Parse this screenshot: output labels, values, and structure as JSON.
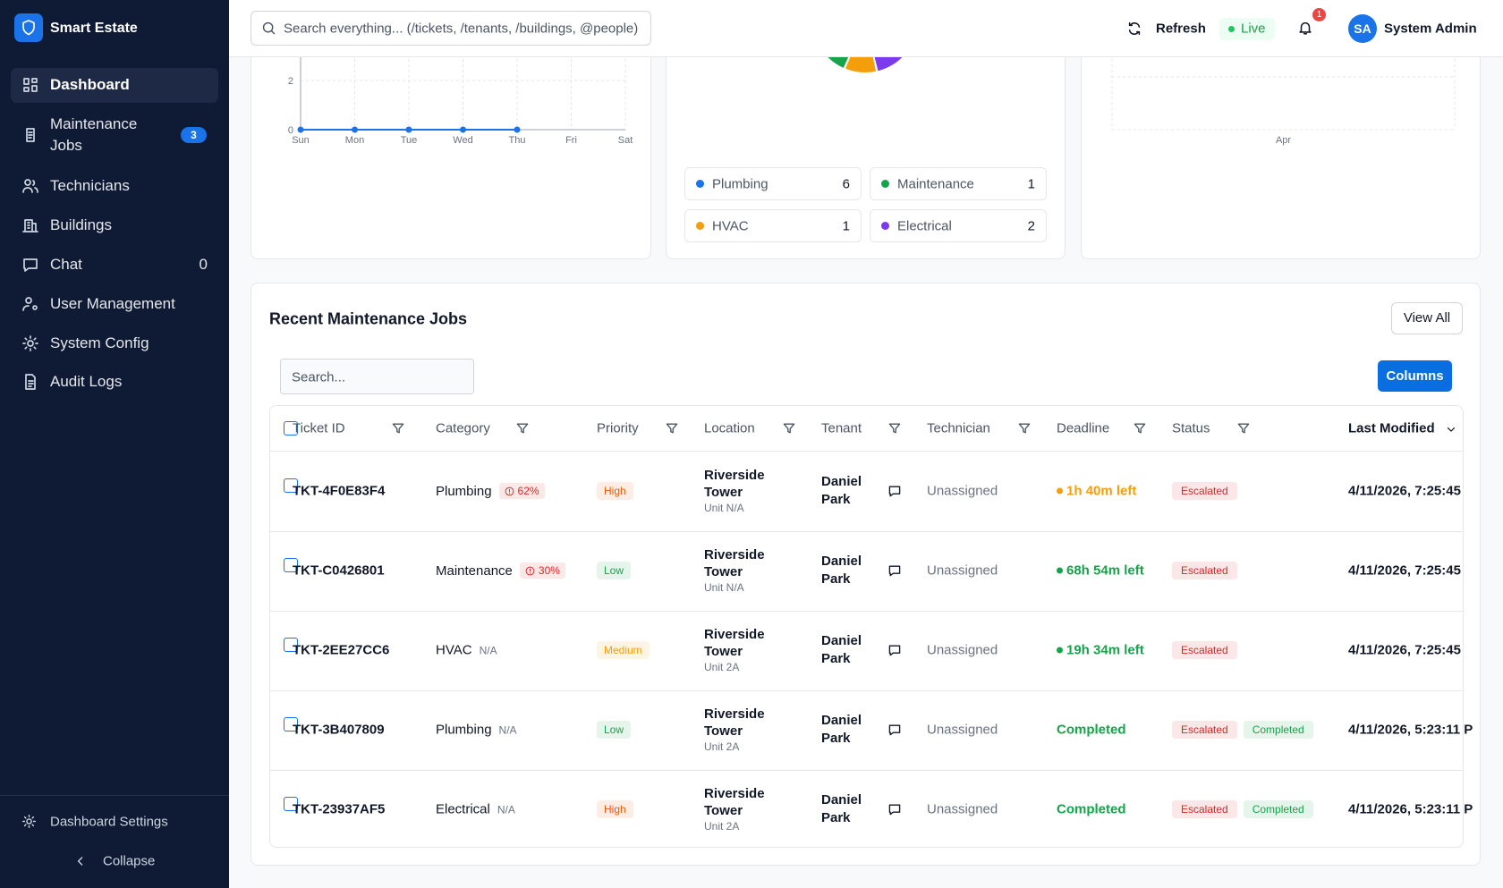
{
  "sidebar": {
    "brand": "Smart Estate",
    "nav": [
      {
        "label": "Dashboard"
      },
      {
        "label": "Maintenance Jobs",
        "badge": "3"
      },
      {
        "label": "Technicians"
      },
      {
        "label": "Buildings"
      },
      {
        "label": "Chat",
        "count": "0"
      },
      {
        "label": "User Management"
      },
      {
        "label": "System Config"
      },
      {
        "label": "Audit Logs"
      }
    ],
    "settings": "Dashboard Settings",
    "collapse": "Collapse"
  },
  "header": {
    "search_placeholder": "Search everything... (/tickets, /tenants, /buildings, @people)",
    "refresh": "Refresh",
    "live": "Live",
    "notifications": "1",
    "avatar": "SA",
    "user": "System Admin"
  },
  "chart_data": [
    {
      "type": "line",
      "categories": [
        "Sun",
        "Mon",
        "Tue",
        "Wed",
        "Thu",
        "Fri",
        "Sat"
      ],
      "values": [
        0,
        0,
        0,
        0,
        0,
        null,
        null
      ],
      "color": "#1a73e8",
      "ylim": [
        0,
        4
      ],
      "yticks": [
        0,
        2
      ],
      "grid": true
    },
    {
      "type": "pie",
      "categories": [
        "Plumbing",
        "Maintenance",
        "HVAC",
        "Electrical"
      ],
      "values": [
        6,
        1,
        1,
        2
      ],
      "colors": [
        "#1a73e8",
        "#16a34a",
        "#f59e0b",
        "#7c3aed"
      ]
    },
    {
      "type": "line",
      "categories": [
        "Apr"
      ],
      "grid": true
    }
  ],
  "jobs": {
    "title": "Recent Maintenance Jobs",
    "view_all": "View All",
    "search_placeholder": "Search...",
    "columns_button": "Columns",
    "columns": [
      "Ticket ID",
      "Category",
      "Priority",
      "Location",
      "Tenant",
      "Technician",
      "Deadline",
      "Status",
      "Last Modified"
    ],
    "rows": [
      {
        "id": "TKT-4F0E83F4",
        "category": "Plumbing",
        "risk": {
          "label": "62%",
          "color": "#dc2626",
          "background": "#fde8e8"
        },
        "priority": {
          "label": "High",
          "color": "#ea580c"
        },
        "location": "Riverside Tower",
        "unit": "Unit N/A",
        "tenant": "Daniel Park",
        "technician": "Unassigned",
        "deadline": {
          "label": "1h 40m left",
          "color": "#f59e0b",
          "dot": true
        },
        "status": [
          {
            "label": "Escalated",
            "color": "#dc2626"
          }
        ],
        "modified": "4/11/2026, 7:25:45"
      },
      {
        "id": "TKT-C0426801",
        "category": "Maintenance",
        "risk": {
          "label": "30%",
          "color": "#dc2626",
          "background": "#fde8e8"
        },
        "priority": {
          "label": "Low",
          "color": "#16a34a"
        },
        "location": "Riverside Tower",
        "unit": "Unit N/A",
        "tenant": "Daniel Park",
        "technician": "Unassigned",
        "deadline": {
          "label": "68h 54m left",
          "color": "#16a34a",
          "dot": true
        },
        "status": [
          {
            "label": "Escalated",
            "color": "#dc2626"
          }
        ],
        "modified": "4/11/2026, 7:25:45"
      },
      {
        "id": "TKT-2EE27CC6",
        "category": "HVAC",
        "risk": {
          "label": "N/A",
          "color": "#6b7280"
        },
        "priority": {
          "label": "Medium",
          "color": "#f59e0b"
        },
        "location": "Riverside Tower",
        "unit": "Unit 2A",
        "tenant": "Daniel Park",
        "technician": "Unassigned",
        "deadline": {
          "label": "19h 34m left",
          "color": "#16a34a",
          "dot": true
        },
        "status": [
          {
            "label": "Escalated",
            "color": "#dc2626"
          }
        ],
        "modified": "4/11/2026, 7:25:45"
      },
      {
        "id": "TKT-3B407809",
        "category": "Plumbing",
        "risk": {
          "label": "N/A",
          "color": "#6b7280"
        },
        "priority": {
          "label": "Low",
          "color": "#16a34a"
        },
        "location": "Riverside Tower",
        "unit": "Unit 2A",
        "tenant": "Daniel Park",
        "technician": "Unassigned",
        "deadline": {
          "label": "Completed",
          "color": "#16a34a",
          "dot": false
        },
        "status": [
          {
            "label": "Escalated",
            "color": "#dc2626"
          },
          {
            "label": "Completed",
            "color": "#16a34a"
          }
        ],
        "modified": "4/11/2026, 5:23:11 P"
      },
      {
        "id": "TKT-23937AF5",
        "category": "Electrical",
        "risk": {
          "label": "N/A",
          "color": "#6b7280"
        },
        "priority": {
          "label": "High",
          "color": "#ea580c"
        },
        "location": "Riverside Tower",
        "unit": "Unit 2A",
        "tenant": "Daniel Park",
        "technician": "Unassigned",
        "deadline": {
          "label": "Completed",
          "color": "#16a34a",
          "dot": false
        },
        "status": [
          {
            "label": "Escalated",
            "color": "#dc2626"
          },
          {
            "label": "Completed",
            "color": "#16a34a"
          }
        ],
        "modified": "4/11/2026, 5:23:11 P"
      }
    ]
  }
}
